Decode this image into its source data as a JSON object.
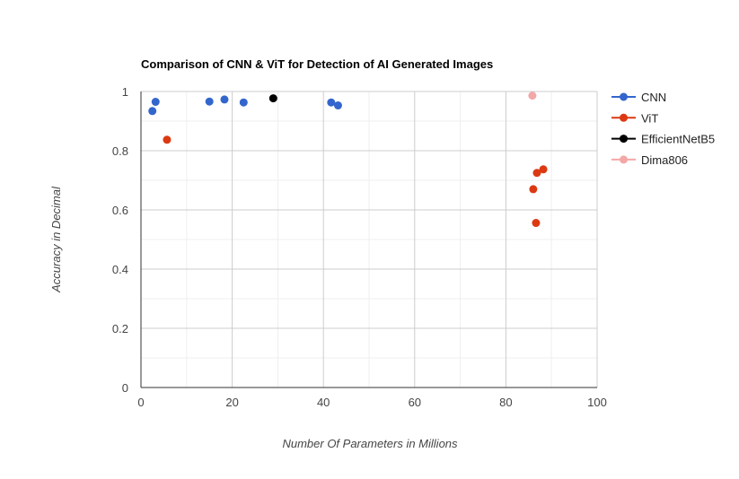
{
  "chart_data": {
    "type": "scatter",
    "title": "Comparison of CNN & ViT for Detection of AI Generated Images",
    "xlabel": "Number Of Parameters in Millions",
    "ylabel": "Accuracy in Decimal",
    "xlim": [
      0,
      100
    ],
    "ylim": [
      0,
      1
    ],
    "x_ticks": [
      0,
      20,
      40,
      60,
      80,
      100
    ],
    "y_ticks": [
      0,
      0.2,
      0.4,
      0.6,
      0.8,
      1
    ],
    "x_tick_labels": [
      "0",
      "20",
      "40",
      "60",
      "80",
      "100"
    ],
    "y_tick_labels": [
      "0",
      "0.2",
      "0.4",
      "0.6",
      "0.8",
      "1"
    ],
    "grid": true,
    "legend_position": "right",
    "series": [
      {
        "name": "CNN",
        "color": "#3366cc",
        "points": [
          {
            "x": 2.5,
            "y": 0.934
          },
          {
            "x": 3.2,
            "y": 0.965
          },
          {
            "x": 15,
            "y": 0.966
          },
          {
            "x": 18.3,
            "y": 0.973
          },
          {
            "x": 22.5,
            "y": 0.963
          },
          {
            "x": 41.7,
            "y": 0.963
          },
          {
            "x": 43.2,
            "y": 0.953
          }
        ]
      },
      {
        "name": "ViT",
        "color": "#dc3912",
        "points": [
          {
            "x": 5.7,
            "y": 0.837
          },
          {
            "x": 86,
            "y": 0.67
          },
          {
            "x": 86.6,
            "y": 0.556
          },
          {
            "x": 86.8,
            "y": 0.725
          },
          {
            "x": 88.2,
            "y": 0.737
          }
        ]
      },
      {
        "name": "EfficientNetB5",
        "color": "#000000",
        "points": [
          {
            "x": 29,
            "y": 0.977
          }
        ]
      },
      {
        "name": "Dima806",
        "color": "#f4a7a7",
        "points": [
          {
            "x": 85.8,
            "y": 0.986
          }
        ]
      }
    ]
  }
}
